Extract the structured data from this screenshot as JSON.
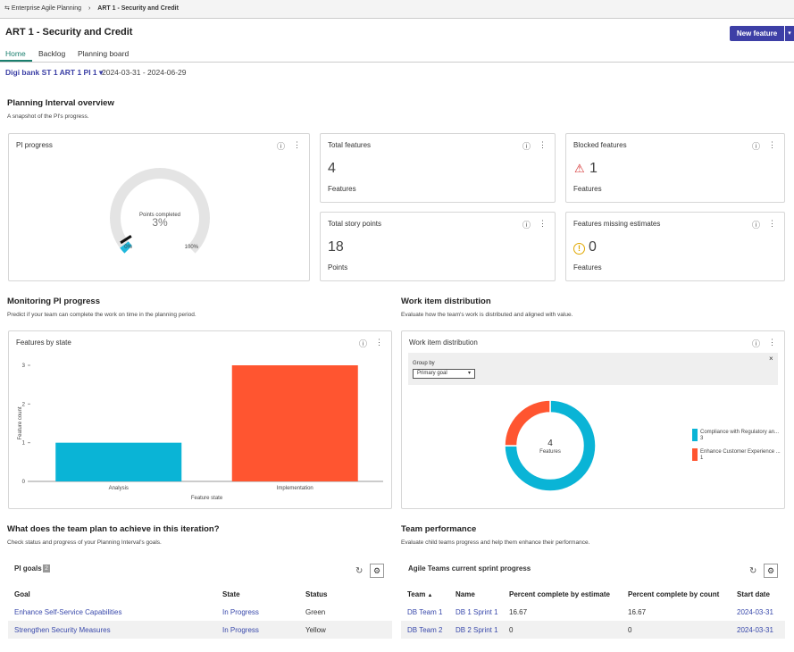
{
  "breadcrumb": [
    "Enterprise Agile Planning",
    "ART 1 - Security and Credit"
  ],
  "header": {
    "title": "ART 1 - Security and Credit",
    "button": "New feature"
  },
  "tabs": [
    "Home",
    "Backlog",
    "Planning board"
  ],
  "pi": {
    "selector": "Digi bank ST 1 ART 1 PI 1",
    "dates": "2024-03-31 - 2024-06-29"
  },
  "overview": {
    "title": "Planning Interval overview",
    "subtitle": "A snapshot of the PI's progress.",
    "progress_title": "PI progress"
  },
  "cards": [
    {
      "title": "Total features",
      "value": 4,
      "unit": "Features"
    },
    {
      "title": "Blocked features",
      "value": 1,
      "unit": "Features"
    },
    {
      "title": "Total story points",
      "value": 18,
      "unit": "Points"
    },
    {
      "title": "Features missing estimates",
      "value": 0,
      "unit": "Features"
    }
  ],
  "monitoring": {
    "title": "Monitoring PI progress",
    "subtitle": "Predict if your team can complete the work on time in the planning period."
  },
  "distribution": {
    "title": "Work item distribution",
    "subtitle": "Evaluate how the team's work is distributed and aligned with value."
  },
  "chart_data": [
    {
      "type": "gauge",
      "label": "Points completed",
      "values": [
        3
      ],
      "value_labels": [
        "3%"
      ],
      "color": "#1fb8dc",
      "ylim": [
        0,
        100
      ],
      "yticks": [
        {
          "value": 0,
          "label": "0%"
        },
        {
          "value": 100,
          "label": "100%"
        }
      ]
    },
    {
      "type": "bar",
      "title": "Features by state",
      "categories": [
        "Analysis",
        "Implementation"
      ],
      "values": [
        1,
        3
      ],
      "colors": [
        "#0ab4d6",
        "#ff5530"
      ],
      "x_label": "Feature state",
      "y_label": "Feature count",
      "ylim": [
        0,
        3
      ],
      "yticks": [
        0,
        1,
        2,
        3
      ]
    },
    {
      "type": "donut",
      "title": "Work item distribution",
      "group_by_label": "Group by",
      "group_by_value": "Primary goal",
      "total": 4,
      "total_label": "Features",
      "categories": [
        "Compliance with Regulatory an...",
        "Enhance Customer Experience ..."
      ],
      "values": [
        3,
        1
      ],
      "colors": [
        "#0ab4d6",
        "#ff5530"
      ]
    }
  ],
  "goals": {
    "title": "What does the team plan to achieve in this iteration?",
    "subtitle": "Check status and progress of your Planning Interval's goals.",
    "table_title": "PI goals",
    "count": 2,
    "table": {
      "columns": [
        "Goal",
        "State",
        "Status"
      ],
      "rows": [
        [
          "Enhance Self-Service Capabilities",
          "In Progress",
          "Green"
        ],
        [
          "Strengthen Security Measures",
          "In Progress",
          "Yellow"
        ]
      ]
    }
  },
  "team": {
    "title": "Team performance",
    "subtitle": "Evaluate child teams progress and help them enhance their performance.",
    "table_title": "Agile Teams current sprint progress",
    "table": {
      "columns": [
        "Team",
        "Name",
        "Percent complete by estimate",
        "Percent complete by count",
        "Start date"
      ],
      "rows": [
        [
          "DB Team 1",
          "DB 1 Sprint 1",
          16.67,
          16.67,
          "2024-03-31"
        ],
        [
          "DB Team 2",
          "DB 2 Sprint 1",
          0,
          0,
          "2024-03-31"
        ]
      ]
    }
  }
}
